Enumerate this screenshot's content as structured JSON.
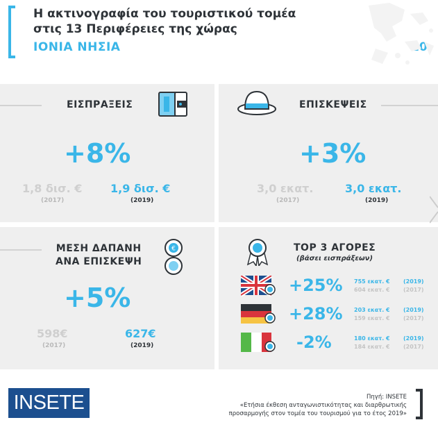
{
  "header": {
    "title_line1": "Η ακτινογραφία του τουριστικού τομέα",
    "title_line2": "στις 13 Περιφέρειες της χώρας",
    "region": "ΙΟΝΙΑ ΝΗΣΙΑ",
    "region_number": "10"
  },
  "receipts": {
    "label": "ΕΙΣΠΡΑΞΕΙΣ",
    "change": "+8%",
    "value_2017": "1,8 δισ. €",
    "year_2017": "(2017)",
    "value_2019": "1,9 δισ. €",
    "year_2019": "(2019)",
    "icon": "credit-card-icon"
  },
  "visits": {
    "label": "ΕΠΙΣΚΕΨΕΙΣ",
    "change": "+3%",
    "value_2017": "3,0 εκατ.",
    "year_2017": "(2017)",
    "value_2019": "3,0 εκατ.",
    "year_2019": "(2019)",
    "icon": "hat-icon"
  },
  "spend": {
    "label_line1": "ΜΕΣΗ ΔΑΠΑΝΗ",
    "label_line2": "ΑΝΑ ΕΠΙΣΚΕΨΗ",
    "change": "+5%",
    "value_2017": "598€",
    "year_2017": "(2017)",
    "value_2019": "627€",
    "year_2019": "(2019)",
    "icon": "coin-stack-icon"
  },
  "markets": {
    "title": "TOP 3 ΑΓΟΡΕΣ",
    "subtitle": "(βάσει εισπράξεων)",
    "icon": "award-medal-icon",
    "items": [
      {
        "flag": "uk-flag-icon",
        "rank": "1",
        "change": "+25%",
        "value_2019": "755 εκατ. €",
        "year_2019": "(2019)",
        "value_2017": "604 εκατ. €",
        "year_2017": "(2017)"
      },
      {
        "flag": "germany-flag-icon",
        "rank": "2",
        "change": "+28%",
        "value_2019": "203 εκατ. €",
        "year_2019": "(2019)",
        "value_2017": "159 εκατ. €",
        "year_2017": "(2017)"
      },
      {
        "flag": "italy-flag-icon",
        "rank": "3",
        "change": "-2%",
        "value_2019": "180 εκατ. €",
        "year_2019": "(2019)",
        "value_2017": "184 εκατ. €",
        "year_2017": "(2017)"
      }
    ]
  },
  "footer": {
    "logo": "INSETE",
    "source_label": "Πηγή: INSETE",
    "source_line1": "«Ετήσια έκθεση ανταγωνιστικότητας και διαρθρωτικής",
    "source_line2": "προσαρμογής στον τομέα του τουρισμού για το έτος 2019»"
  },
  "colors": {
    "accent": "#3ab6e8",
    "dark": "#2e3338",
    "panel": "#efefef",
    "logo_bg": "#1c4f8f"
  }
}
